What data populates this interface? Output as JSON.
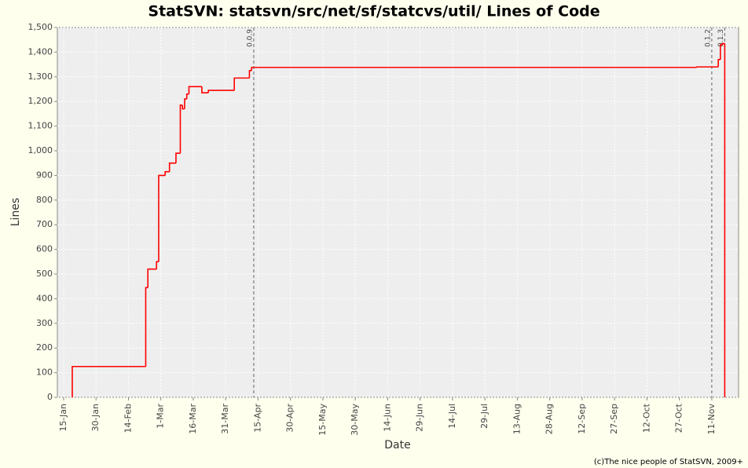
{
  "chart_data": {
    "type": "step",
    "title": "StatSVN: statsvn/src/net/sf/statcvs/util/ Lines of Code",
    "x_label": "Date",
    "y_label": "Lines",
    "footer": "(c)The nice people of StatSVN, 2009+",
    "series": [
      {
        "name": "Lines",
        "color": "#ff0000",
        "x": [
          19,
          19,
          53,
          53,
          53,
          53,
          54,
          58,
          58,
          59,
          59,
          59,
          62,
          64,
          67,
          69,
          70,
          71,
          72,
          73,
          79,
          82,
          94,
          101,
          102,
          308,
          318,
          319,
          320,
          321
        ],
        "values": [
          0,
          125,
          150,
          265,
          390,
          445,
          520,
          545,
          550,
          800,
          830,
          900,
          915,
          950,
          990,
          1185,
          1170,
          1210,
          1230,
          1260,
          1235,
          1245,
          1295,
          1325,
          1338,
          1340,
          1370,
          1430,
          1435,
          0
        ]
      }
    ],
    "markers": [
      {
        "x": 103,
        "label": "0.0.9"
      },
      {
        "x": 315,
        "label": "0.1.2"
      },
      {
        "x": 321,
        "label": "0.1.3"
      }
    ],
    "xlim": [
      12.1,
      327.4
    ],
    "xticks": [
      {
        "value": 15,
        "label": "15-Jan"
      },
      {
        "value": 30,
        "label": "30-Jan"
      },
      {
        "value": 45,
        "label": "14-Feb"
      },
      {
        "value": 60,
        "label": "1-Mar"
      },
      {
        "value": 75,
        "label": "16-Mar"
      },
      {
        "value": 90,
        "label": "31-Mar"
      },
      {
        "value": 105,
        "label": "15-Apr"
      },
      {
        "value": 120,
        "label": "30-Apr"
      },
      {
        "value": 135,
        "label": "15-May"
      },
      {
        "value": 150,
        "label": "30-May"
      },
      {
        "value": 165,
        "label": "14-Jun"
      },
      {
        "value": 180,
        "label": "29-Jun"
      },
      {
        "value": 195,
        "label": "14-Jul"
      },
      {
        "value": 210,
        "label": "29-Jul"
      },
      {
        "value": 225,
        "label": "13-Aug"
      },
      {
        "value": 240,
        "label": "28-Aug"
      },
      {
        "value": 255,
        "label": "12-Sep"
      },
      {
        "value": 270,
        "label": "27-Sep"
      },
      {
        "value": 285,
        "label": "12-Oct"
      },
      {
        "value": 300,
        "label": "27-Oct"
      },
      {
        "value": 315,
        "label": "11-Nov"
      }
    ],
    "ylim": [
      0,
      1500
    ],
    "yticks": [
      0,
      100,
      200,
      300,
      400,
      500,
      600,
      700,
      800,
      900,
      {
        "value": 1000,
        "label": "1,000"
      },
      {
        "value": 1100,
        "label": "1,100"
      },
      {
        "value": 1200,
        "label": "1,200"
      },
      {
        "value": 1300,
        "label": "1,300"
      },
      {
        "value": 1400,
        "label": "1,400"
      },
      {
        "value": 1500,
        "label": "1,500"
      }
    ],
    "grid": true
  }
}
